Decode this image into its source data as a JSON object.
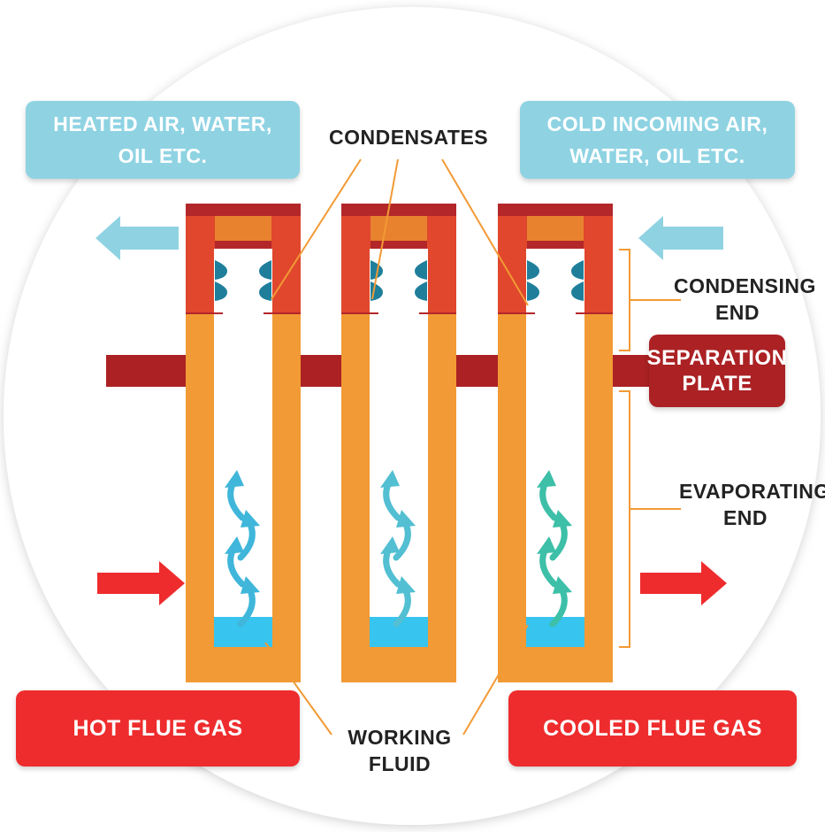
{
  "labels": {
    "heated": "HEATED AIR, WATER,\nOIL ETC.",
    "cold_incoming": "COLD INCOMING AIR,\nWATER, OIL ETC.",
    "condensates": "CONDENSATES",
    "condensing_end": "CONDENSING\nEND",
    "separation_plate": "SEPARATION\nPLATE",
    "evaporating_end": "EVAPORATING\nEND",
    "hot_flue_gas": "HOT FLUE GAS",
    "cooled_flue_gas": "COOLED FLUE GAS",
    "working_fluid": "WORKING\nFLUID"
  },
  "colors": {
    "background_circle": "#ffffff",
    "tube_orange": "#f29a35",
    "tube_top_red_orange": "#e0472c",
    "cap_dark_red": "#b3272a",
    "cap_inner_orange": "#e8822f",
    "separation_plate": "#ab2124",
    "working_fluid": "#37c4ee",
    "cold_arrow": "#8fd3e3",
    "hot_arrow": "#ee2c2d",
    "vapor_arrows": [
      "#3fb6da",
      "#52bfd2",
      "#3dbfa8"
    ],
    "leader_lines": "#f29a35"
  }
}
